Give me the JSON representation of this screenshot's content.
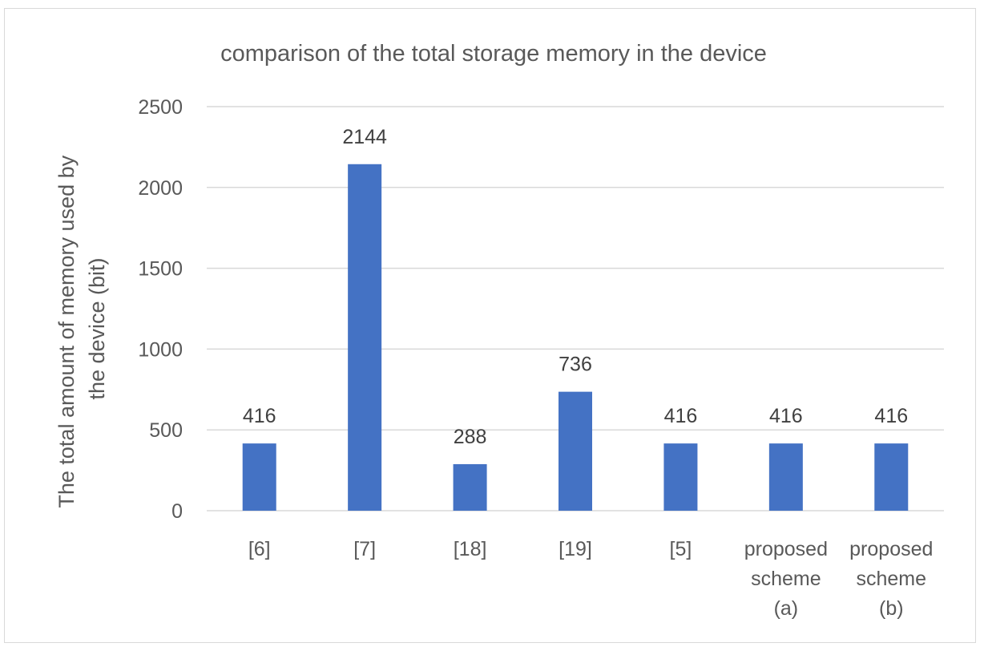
{
  "chart_data": {
    "type": "bar",
    "title": "comparison of the total storage memory in the device",
    "ylabel_lines": [
      "The total amount of memory used by",
      "the device (bit)"
    ],
    "xlabel": "",
    "categories": [
      [
        "[6]"
      ],
      [
        "[7]"
      ],
      [
        "[18]"
      ],
      [
        "[19]"
      ],
      [
        "[5]"
      ],
      [
        "proposed",
        "scheme",
        "(a)"
      ],
      [
        "proposed",
        "scheme",
        "(b)"
      ]
    ],
    "values": [
      416,
      2144,
      288,
      736,
      416,
      416,
      416
    ],
    "ylim": [
      0,
      2500
    ],
    "yticks": [
      0,
      500,
      1000,
      1500,
      2000,
      2500
    ],
    "grid": true,
    "legend": "none",
    "data_labels": true,
    "colors": {
      "bar": "#4472c4",
      "grid": "#d9d9d9",
      "text": "#595959",
      "title": "#595959",
      "label": "#404040"
    }
  }
}
